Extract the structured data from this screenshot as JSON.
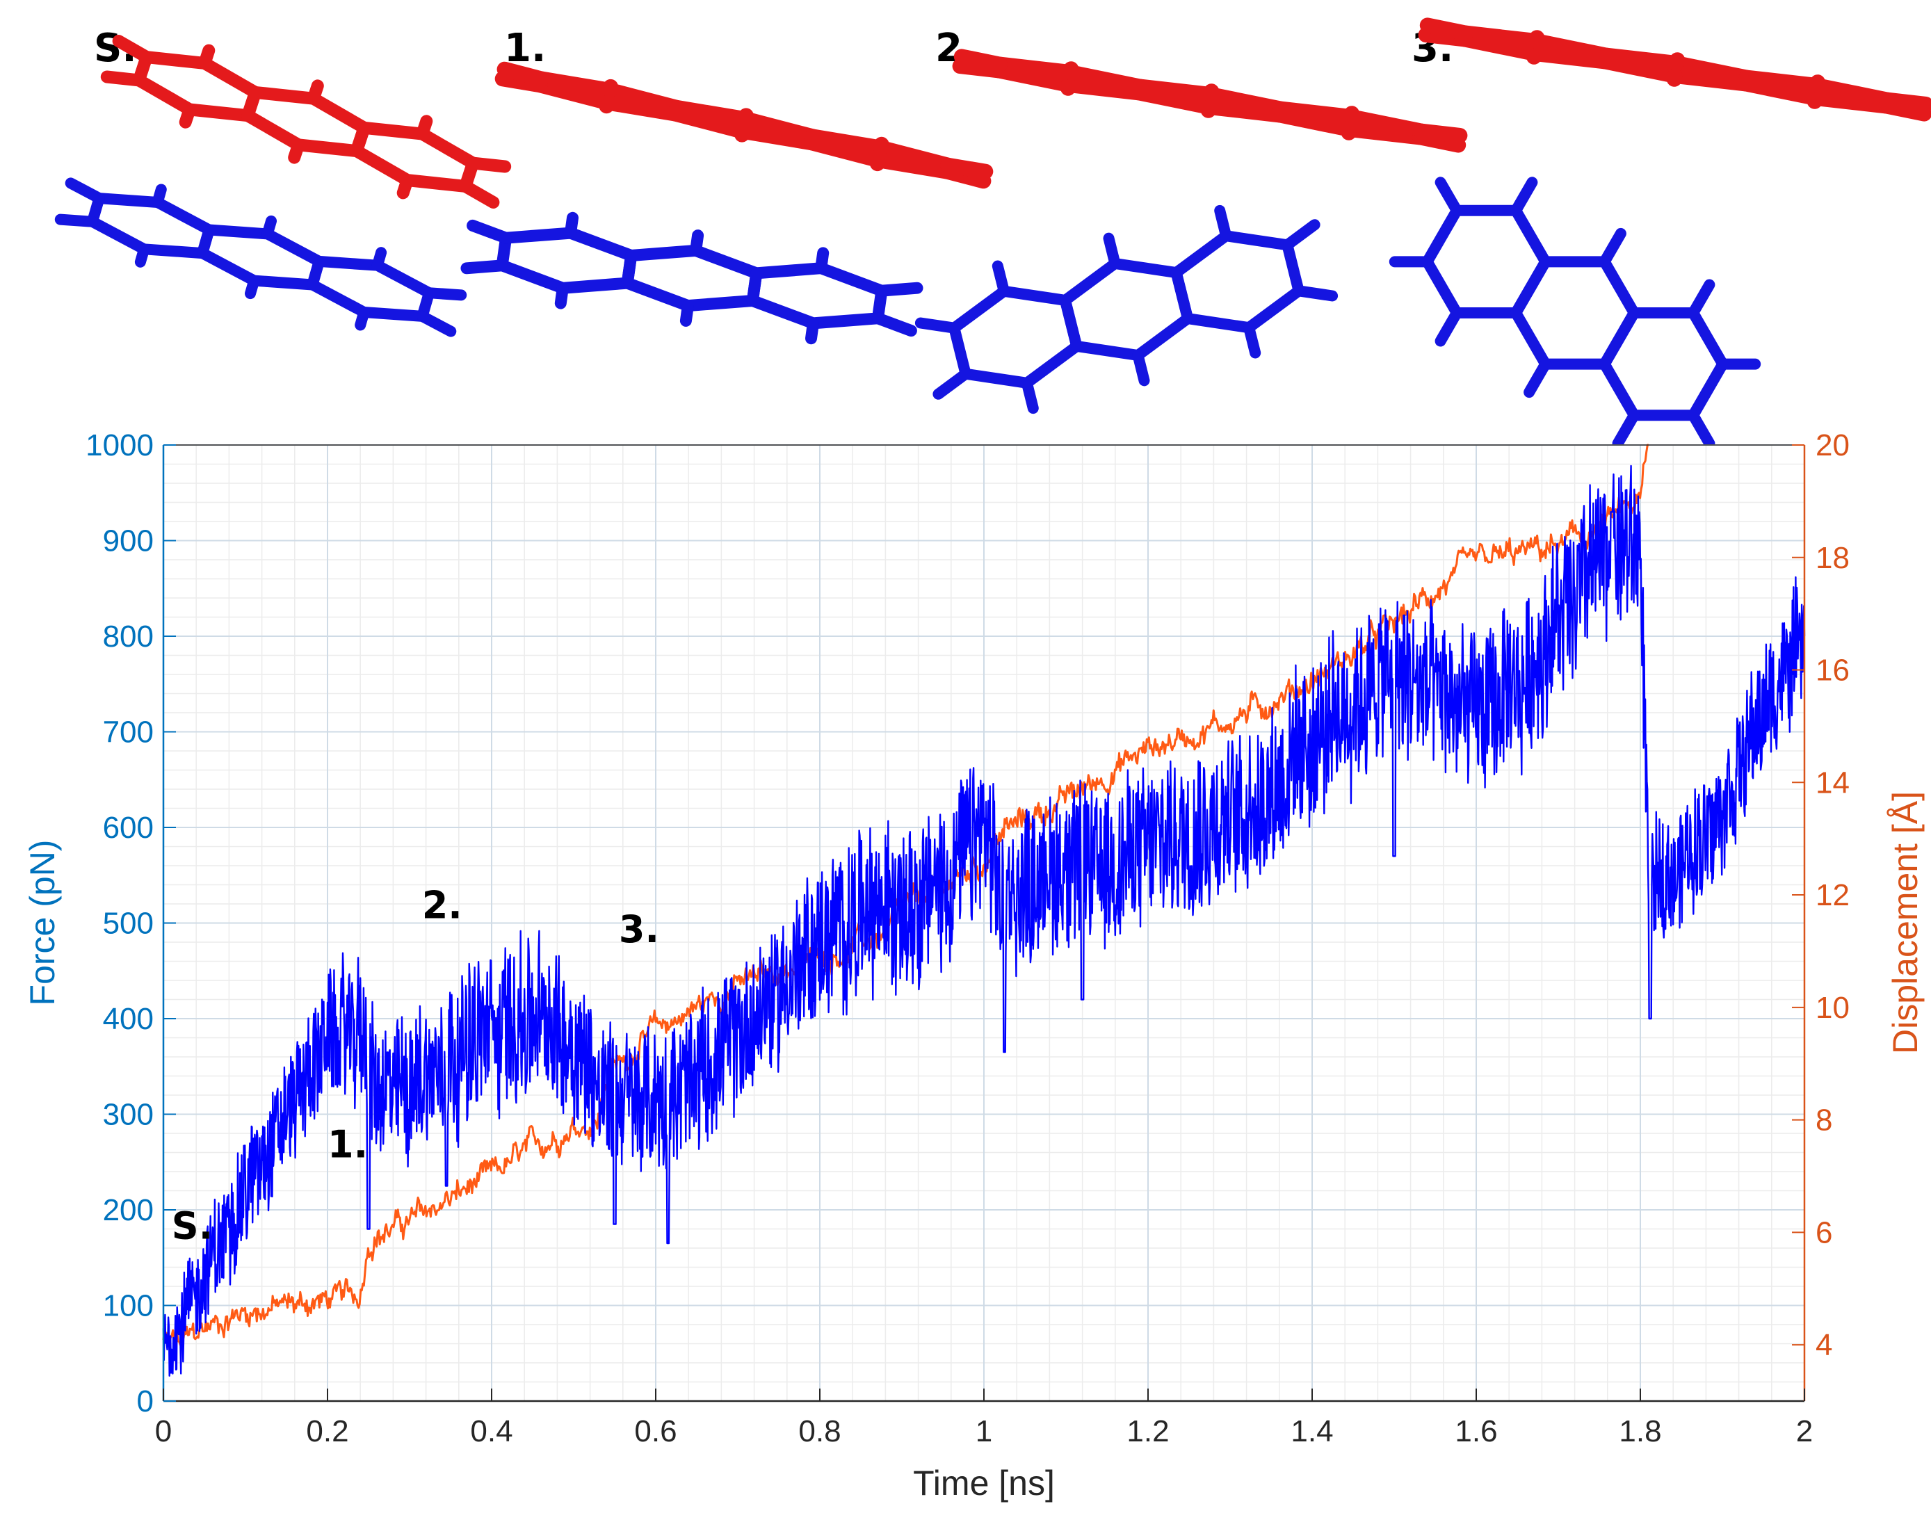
{
  "molecule_panels": [
    {
      "label": "S.",
      "top_color": "#E41A1C",
      "bottom_color": "#1515E0",
      "state": "stacked"
    },
    {
      "label": "1.",
      "top_color": "#E41A1C",
      "bottom_color": "#1515E0",
      "state": "tilted"
    },
    {
      "label": "2.",
      "top_color": "#E41A1C",
      "bottom_color": "#1515E0",
      "state": "separated"
    },
    {
      "label": "3.",
      "top_color": "#E41A1C",
      "bottom_color": "#1515E0",
      "state": "separated-rotated"
    }
  ],
  "chart_data": {
    "type": "line",
    "xlabel": "Time [ns]",
    "ylabel_left": "Force (pN)",
    "ylabel_right": "Displacement [Å]",
    "xlim": [
      0,
      2
    ],
    "ylim_left": [
      0,
      1000
    ],
    "ylim_right": [
      3,
      20
    ],
    "x_ticks": [
      "0",
      "0.2",
      "0.4",
      "0.6",
      "0.8",
      "1",
      "1.2",
      "1.4",
      "1.6",
      "1.8",
      "2"
    ],
    "y_left_ticks": [
      "0",
      "100",
      "200",
      "300",
      "400",
      "500",
      "600",
      "700",
      "800",
      "900",
      "1000"
    ],
    "y_right_ticks": [
      "4",
      "6",
      "8",
      "10",
      "12",
      "14",
      "16",
      "18",
      "20"
    ],
    "grid": true,
    "colors": {
      "force": "#0000FF",
      "displacement": "#FF5A14",
      "left_axis": "#0072BD",
      "right_axis": "#D95319"
    },
    "series": [
      {
        "name": "Force",
        "axis": "left",
        "x": [
          0,
          0.02,
          0.05,
          0.1,
          0.15,
          0.2,
          0.24,
          0.26,
          0.3,
          0.35,
          0.4,
          0.45,
          0.5,
          0.53,
          0.55,
          0.6,
          0.65,
          0.7,
          0.75,
          0.8,
          0.85,
          0.9,
          0.95,
          1.0,
          1.02,
          1.05,
          1.1,
          1.15,
          1.2,
          1.25,
          1.3,
          1.35,
          1.4,
          1.45,
          1.5,
          1.55,
          1.6,
          1.65,
          1.7,
          1.75,
          1.8,
          1.81,
          1.85,
          1.9,
          1.95,
          2.0
        ],
        "center": [
          60,
          80,
          130,
          220,
          300,
          380,
          390,
          320,
          330,
          360,
          390,
          400,
          380,
          330,
          320,
          310,
          340,
          380,
          430,
          480,
          510,
          520,
          540,
          600,
          520,
          540,
          560,
          560,
          580,
          600,
          610,
          640,
          690,
          730,
          760,
          740,
          720,
          740,
          820,
          880,
          900,
          540,
          560,
          620,
          720,
          800
        ],
        "spread": [
          40,
          45,
          50,
          55,
          55,
          60,
          70,
          70,
          70,
          75,
          80,
          80,
          80,
          70,
          70,
          70,
          70,
          70,
          70,
          75,
          80,
          80,
          80,
          80,
          70,
          75,
          80,
          80,
          80,
          80,
          80,
          80,
          80,
          80,
          80,
          80,
          80,
          80,
          80,
          80,
          80,
          60,
          60,
          60,
          60,
          60
        ],
        "spikes": [
          [
            0.25,
            180
          ],
          [
            0.345,
            225
          ],
          [
            0.55,
            185
          ],
          [
            0.615,
            165
          ],
          [
            1.025,
            365
          ],
          [
            1.12,
            420
          ],
          [
            1.5,
            570
          ],
          [
            1.812,
            400
          ],
          [
            1.765,
            930
          ]
        ]
      },
      {
        "name": "Displacement",
        "axis": "right",
        "x": [
          0,
          0.02,
          0.05,
          0.1,
          0.15,
          0.2,
          0.24,
          0.25,
          0.3,
          0.35,
          0.4,
          0.45,
          0.5,
          0.53,
          0.54,
          0.6,
          0.7,
          0.8,
          0.88,
          0.9,
          1.0,
          1.02,
          1.1,
          1.2,
          1.3,
          1.4,
          1.5,
          1.55,
          1.6,
          1.7,
          1.75,
          1.8,
          1.81
        ],
        "center": [
          4.1,
          4.0,
          4.3,
          4.6,
          4.7,
          4.8,
          4.9,
          5.9,
          6.2,
          6.6,
          7.0,
          7.5,
          7.9,
          8.0,
          8.8,
          9.6,
          10.4,
          10.9,
          11.3,
          11.7,
          12.6,
          13.1,
          13.7,
          14.6,
          15.1,
          15.8,
          16.8,
          17.4,
          17.9,
          18.2,
          18.5,
          19.0,
          20.0
        ],
        "spread": 0.25
      }
    ],
    "annotations": [
      {
        "text": "S.",
        "x": 0.01,
        "y": 170
      },
      {
        "text": "1.",
        "x": 0.2,
        "y": 255
      },
      {
        "text": "2.",
        "x": 0.315,
        "y": 505
      },
      {
        "text": "3.",
        "x": 0.555,
        "y": 480
      }
    ]
  }
}
